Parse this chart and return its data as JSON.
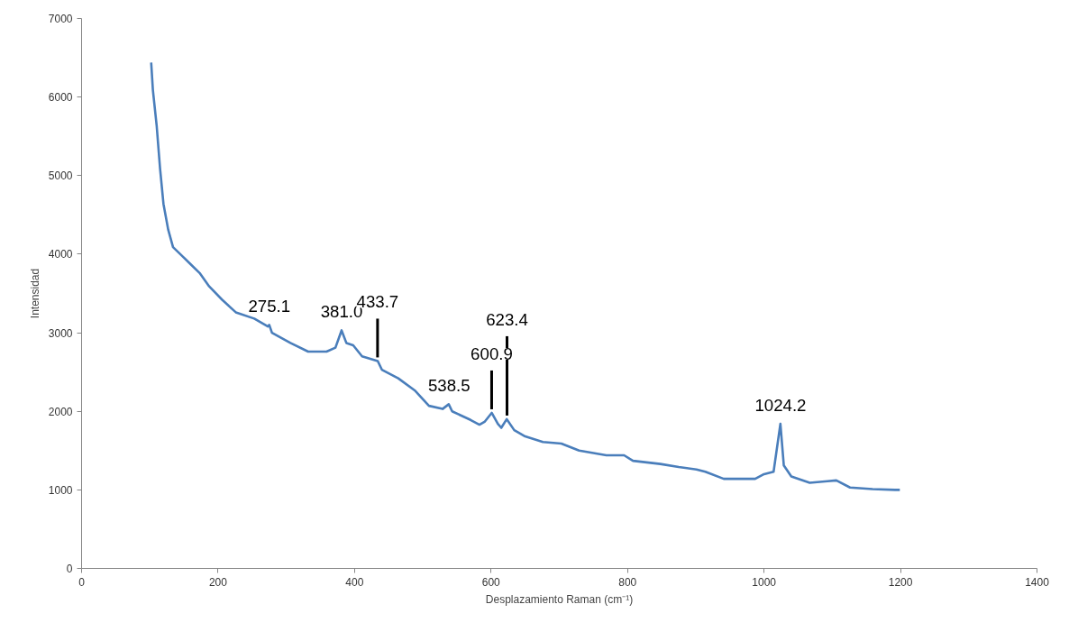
{
  "chart_data": {
    "type": "line",
    "xlabel": "Desplazamiento Raman (cm⁻¹)",
    "ylabel": "Intensidad",
    "xlim": [
      0,
      1400
    ],
    "xticks": [
      0,
      200,
      400,
      600,
      800,
      1000,
      1200,
      1400
    ],
    "ylim": [
      0,
      7000
    ],
    "yticks": [
      0,
      1000,
      2000,
      3000,
      4000,
      5000,
      6000,
      7000
    ],
    "grid": false,
    "series": [
      {
        "color": "#4a7ebb",
        "x": [
          102,
          104.5,
          110,
          115,
          120,
          127,
          134,
          147,
          160,
          173,
          187,
          206,
          226,
          253,
          273,
          275,
          279,
          306,
          332,
          359,
          372,
          381,
          388,
          398,
          411,
          434,
          440,
          464,
          489,
          509,
          529,
          538,
          543,
          570,
          583,
          591,
          601,
          610,
          615,
          623,
          634,
          650,
          676,
          703,
          729,
          769,
          795,
          808,
          848,
          875,
          901,
          914,
          941,
          967,
          987,
          1000,
          1014,
          1024,
          1029,
          1040,
          1067,
          1093,
          1106,
          1126,
          1159,
          1192,
          1199
        ],
        "values": [
          6440,
          6090,
          5640,
          5090,
          4640,
          4310,
          4090,
          3980,
          3870,
          3760,
          3590,
          3420,
          3260,
          3180,
          3080,
          3100,
          3000,
          2870,
          2760,
          2760,
          2810,
          3030,
          2870,
          2840,
          2700,
          2640,
          2530,
          2420,
          2260,
          2070,
          2030,
          2090,
          2000,
          1890,
          1830,
          1870,
          1980,
          1840,
          1790,
          1900,
          1760,
          1680,
          1610,
          1590,
          1500,
          1440,
          1440,
          1370,
          1330,
          1290,
          1260,
          1230,
          1140,
          1140,
          1140,
          1200,
          1230,
          1840,
          1310,
          1170,
          1090,
          1110,
          1120,
          1030,
          1010,
          1000,
          1000
        ]
      }
    ],
    "annotations": [
      {
        "text": "275.1",
        "x": 275.1,
        "y": 3100
      },
      {
        "text": "381.0",
        "x": 381.0,
        "y": 3030
      },
      {
        "text": "433.7",
        "x": 433.7,
        "y": 2640
      },
      {
        "text": "538.5",
        "x": 538.5,
        "y": 2090
      },
      {
        "text": "600.9",
        "x": 600.9,
        "y": 1980
      },
      {
        "text": "623.4",
        "x": 623.4,
        "y": 1900
      },
      {
        "text": "1024.2",
        "x": 1024.2,
        "y": 1840
      }
    ]
  }
}
